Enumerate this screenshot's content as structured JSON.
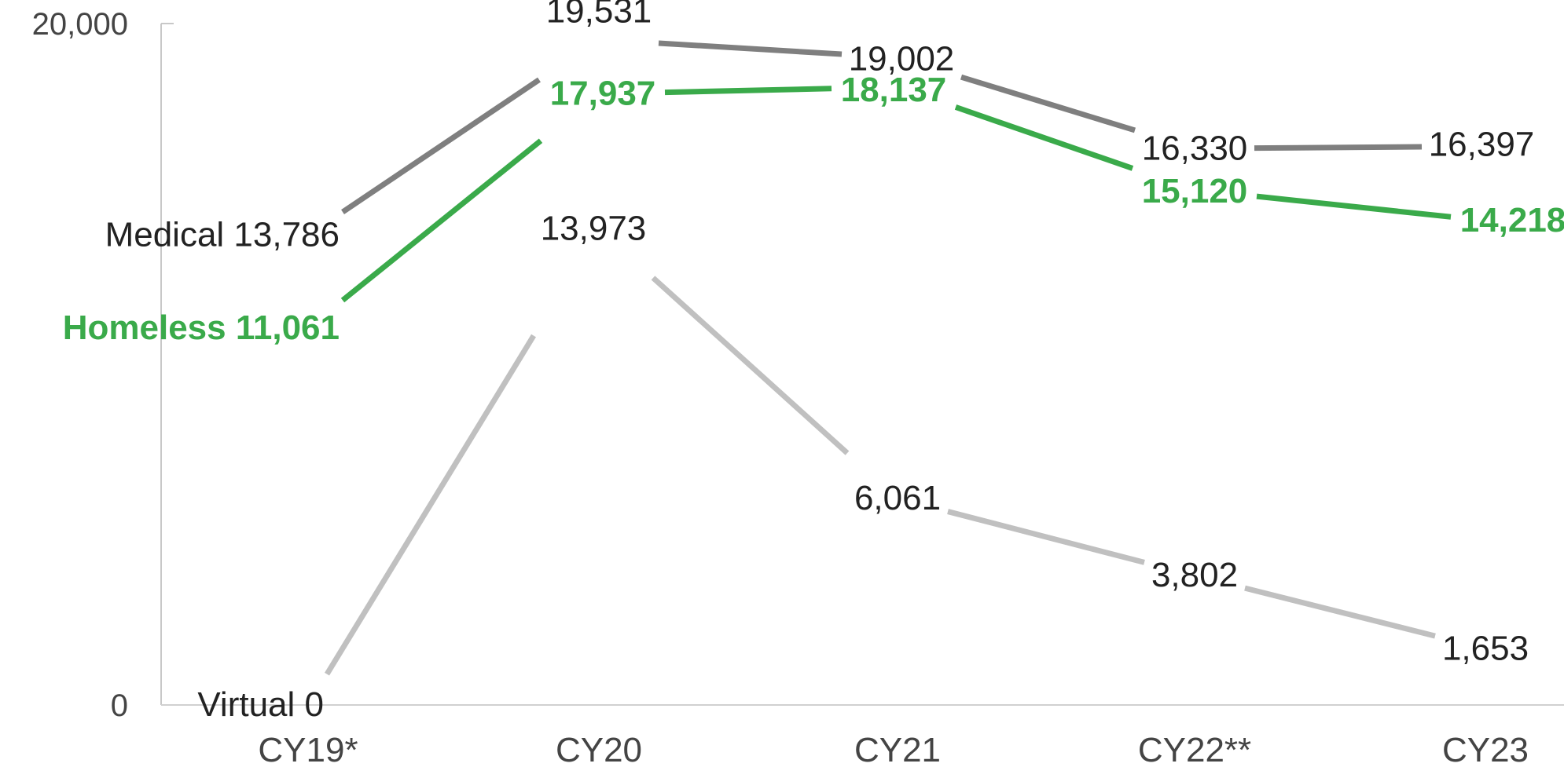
{
  "chart_data": {
    "type": "line",
    "title": "",
    "xlabel": "",
    "ylabel": "",
    "categories": [
      "CY19*",
      "CY20",
      "CY21",
      "CY22**",
      "CY23"
    ],
    "ylim": [
      0,
      20000
    ],
    "y_ticks": [
      0,
      20000
    ],
    "y_tick_labels": [
      "0",
      "20,000"
    ],
    "grid": false,
    "legend": "none (series names labelled at first point)",
    "series": [
      {
        "name": "Medical",
        "color": "#7f7f7f",
        "bold": false,
        "values": [
          13786,
          19531,
          19002,
          16330,
          16397
        ],
        "labels": [
          "Medical 13,786",
          "19,531",
          "19,002",
          "16,330",
          "16,397"
        ]
      },
      {
        "name": "Homeless",
        "color": "#3aaa4a",
        "bold": true,
        "values": [
          11061,
          17937,
          18137,
          15120,
          14218
        ],
        "labels": [
          "Homeless 11,061",
          "17,937",
          "18,137",
          "15,120",
          "14,218"
        ]
      },
      {
        "name": "Virtual",
        "color": "#c0c0c0",
        "bold": false,
        "values": [
          0,
          13973,
          6061,
          3802,
          1653
        ],
        "labels": [
          "Virtual 0",
          "13,973",
          "6,061",
          "3,802",
          "1,653"
        ]
      }
    ]
  }
}
